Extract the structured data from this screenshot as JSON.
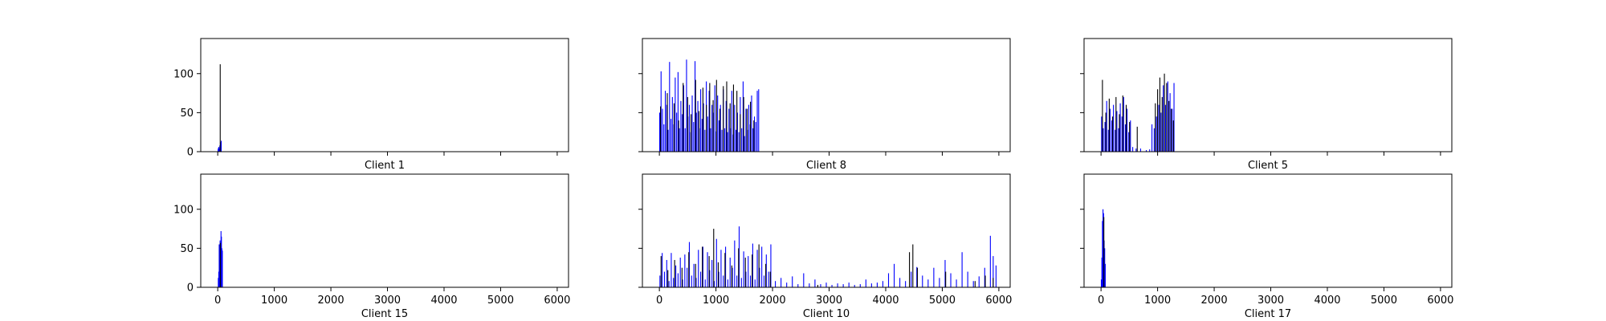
{
  "chart_data": [
    {
      "type": "bar",
      "title": "Client 1",
      "xlim": [
        -300,
        6200
      ],
      "ylim": [
        0,
        145
      ],
      "xticks": [
        0,
        1000,
        2000,
        3000,
        4000,
        5000,
        6000
      ],
      "yticks": [
        0,
        50,
        100
      ],
      "show_xtick_labels": false,
      "show_ytick_labels": true,
      "series": [
        {
          "color": "#0000ff",
          "x": [
            6,
            12,
            20,
            30,
            38,
            50,
            62
          ],
          "values": [
            3,
            5,
            6,
            4,
            8,
            12,
            14
          ]
        },
        {
          "color": "#000000",
          "x": [
            44
          ],
          "values": [
            112
          ]
        }
      ]
    },
    {
      "type": "bar",
      "title": "Client 8",
      "xlim": [
        -300,
        6200
      ],
      "ylim": [
        0,
        145
      ],
      "xticks": [
        0,
        1000,
        2000,
        3000,
        4000,
        5000,
        6000
      ],
      "yticks": [
        0,
        50,
        100
      ],
      "show_xtick_labels": false,
      "show_ytick_labels": false,
      "series": [
        {
          "color": "#0000ff",
          "x": [
            5,
            30,
            55,
            80,
            105,
            130,
            155,
            180,
            205,
            230,
            255,
            280,
            305,
            330,
            355,
            380,
            405,
            430,
            455,
            480,
            505,
            530,
            555,
            580,
            605,
            630,
            655,
            680,
            705,
            730,
            755,
            780,
            805,
            830,
            855,
            880,
            905,
            930,
            955,
            980,
            1005,
            1030,
            1055,
            1080,
            1105,
            1130,
            1155,
            1180,
            1205,
            1230,
            1255,
            1280,
            1305,
            1330,
            1355,
            1380,
            1405,
            1430,
            1455,
            1480,
            1505,
            1530,
            1555,
            1580,
            1605,
            1630,
            1655,
            1680,
            1705,
            1730,
            1755
          ],
          "values": [
            50,
            103,
            55,
            35,
            78,
            60,
            28,
            115,
            42,
            70,
            35,
            95,
            50,
            102,
            30,
            65,
            48,
            85,
            30,
            118,
            45,
            60,
            25,
            72,
            38,
            116,
            50,
            65,
            30,
            80,
            42,
            62,
            28,
            90,
            45,
            78,
            30,
            60,
            50,
            85,
            26,
            72,
            40,
            60,
            28,
            80,
            30,
            65,
            25,
            55,
            30,
            78,
            22,
            60,
            28,
            50,
            25,
            70,
            30,
            90,
            20,
            55,
            28,
            60,
            35,
            72,
            30,
            45,
            38,
            78,
            80
          ]
        },
        {
          "color": "#000000",
          "x": [
            20,
            140,
            260,
            340,
            420,
            500,
            560,
            640,
            700,
            770,
            830,
            890,
            950,
            1010,
            1070,
            1130,
            1190,
            1250,
            1310,
            1370,
            1430,
            1490,
            1550,
            1610,
            1670
          ],
          "values": [
            58,
            75,
            62,
            40,
            88,
            70,
            48,
            92,
            52,
            82,
            60,
            88,
            66,
            92,
            55,
            84,
            90,
            62,
            86,
            78,
            48,
            70,
            55,
            64,
            40
          ]
        }
      ]
    },
    {
      "type": "bar",
      "title": "Client 5",
      "xlim": [
        -300,
        6200
      ],
      "ylim": [
        0,
        145
      ],
      "xticks": [
        0,
        1000,
        2000,
        3000,
        4000,
        5000,
        6000
      ],
      "yticks": [
        0,
        50,
        100
      ],
      "show_xtick_labels": false,
      "show_ytick_labels": false,
      "series": [
        {
          "color": "#0000ff",
          "x": [
            10,
            40,
            70,
            100,
            130,
            160,
            190,
            220,
            250,
            280,
            310,
            340,
            370,
            400,
            430,
            460,
            490,
            520,
            560,
            620,
            700,
            800,
            860,
            900,
            940,
            980,
            1020,
            1060,
            1100,
            1140,
            1180,
            1220,
            1260,
            1290
          ],
          "values": [
            45,
            30,
            38,
            65,
            28,
            55,
            40,
            60,
            28,
            52,
            30,
            62,
            45,
            70,
            35,
            55,
            25,
            40,
            6,
            4,
            4,
            2,
            3,
            35,
            30,
            45,
            60,
            50,
            85,
            60,
            90,
            75,
            55,
            88
          ]
        },
        {
          "color": "#000000",
          "x": [
            25,
            85,
            145,
            205,
            265,
            325,
            385,
            445,
            505,
            640,
            960,
            1000,
            1040,
            1080,
            1120,
            1160,
            1200,
            1240,
            1280
          ],
          "values": [
            92,
            50,
            68,
            45,
            70,
            48,
            72,
            60,
            38,
            32,
            62,
            80,
            95,
            70,
            100,
            88,
            65,
            55,
            40
          ]
        }
      ]
    },
    {
      "type": "bar",
      "title": "Client 15",
      "xlim": [
        -300,
        6200
      ],
      "ylim": [
        0,
        145
      ],
      "xticks": [
        0,
        1000,
        2000,
        3000,
        4000,
        5000,
        6000
      ],
      "yticks": [
        0,
        50,
        100
      ],
      "show_xtick_labels": true,
      "show_ytick_labels": true,
      "series": [
        {
          "color": "#0000ff",
          "x": [
            10,
            18,
            26,
            34,
            42,
            50,
            58,
            66,
            74,
            82
          ],
          "values": [
            12,
            20,
            55,
            35,
            60,
            48,
            72,
            65,
            50,
            47
          ]
        },
        {
          "color": "#000000",
          "x": [
            46
          ],
          "values": [
            57
          ]
        }
      ]
    },
    {
      "type": "bar",
      "title": "Client 10",
      "xlim": [
        -300,
        6200
      ],
      "ylim": [
        0,
        145
      ],
      "xticks": [
        0,
        1000,
        2000,
        3000,
        4000,
        5000,
        6000
      ],
      "yticks": [
        0,
        50,
        100
      ],
      "show_xtick_labels": true,
      "show_ytick_labels": false,
      "series": [
        {
          "color": "#0000ff",
          "x": [
            10,
            50,
            90,
            130,
            170,
            210,
            250,
            290,
            330,
            370,
            410,
            450,
            490,
            530,
            570,
            610,
            650,
            690,
            730,
            770,
            810,
            850,
            890,
            930,
            970,
            1010,
            1050,
            1090,
            1130,
            1170,
            1210,
            1250,
            1290,
            1330,
            1370,
            1410,
            1450,
            1490,
            1530,
            1570,
            1610,
            1650,
            1690,
            1730,
            1770,
            1810,
            1850,
            1890,
            1930,
            1970,
            2050,
            2150,
            2250,
            2350,
            2450,
            2550,
            2650,
            2750,
            2850,
            2950,
            3050,
            3150,
            3250,
            3350,
            3450,
            3550,
            3650,
            3750,
            3850,
            3950,
            4050,
            4150,
            4250,
            4350,
            4450,
            4550,
            4650,
            4750,
            4850,
            4950,
            5050,
            5150,
            5250,
            5350,
            5450,
            5550,
            5650,
            5750,
            5850,
            5900,
            5950
          ],
          "values": [
            15,
            44,
            20,
            35,
            8,
            44,
            12,
            28,
            18,
            38,
            10,
            42,
            25,
            58,
            15,
            30,
            12,
            48,
            20,
            52,
            10,
            45,
            22,
            35,
            8,
            62,
            20,
            48,
            15,
            52,
            10,
            38,
            25,
            60,
            15,
            78,
            12,
            46,
            20,
            40,
            15,
            56,
            10,
            48,
            25,
            52,
            15,
            42,
            20,
            55,
            8,
            12,
            6,
            14,
            4,
            18,
            5,
            10,
            4,
            6,
            3,
            5,
            4,
            6,
            3,
            4,
            10,
            5,
            6,
            8,
            18,
            30,
            12,
            8,
            20,
            26,
            15,
            10,
            25,
            12,
            35,
            18,
            10,
            45,
            20,
            8,
            14,
            25,
            66,
            40,
            28
          ]
        },
        {
          "color": "#000000",
          "x": [
            30,
            150,
            270,
            400,
            520,
            640,
            760,
            880,
            960,
            1040,
            1160,
            1280,
            1400,
            1520,
            1640,
            1760,
            1880,
            1960,
            2800,
            4420,
            4480,
            4560,
            5060,
            5580,
            5760,
            5900
          ],
          "values": [
            40,
            22,
            35,
            25,
            45,
            30,
            52,
            40,
            75,
            32,
            44,
            28,
            50,
            38,
            42,
            55,
            30,
            20,
            3,
            45,
            55,
            25,
            20,
            8,
            15,
            12
          ]
        }
      ]
    },
    {
      "type": "bar",
      "title": "Client 17",
      "xlim": [
        -300,
        6200
      ],
      "ylim": [
        0,
        145
      ],
      "xticks": [
        0,
        1000,
        2000,
        3000,
        4000,
        5000,
        6000
      ],
      "yticks": [
        0,
        50,
        100
      ],
      "show_xtick_labels": true,
      "show_ytick_labels": false,
      "series": [
        {
          "color": "#0000ff",
          "x": [
            5,
            15,
            25,
            35,
            45,
            55,
            65,
            75
          ],
          "values": [
            10,
            38,
            85,
            100,
            95,
            60,
            50,
            30
          ]
        },
        {
          "color": "#000000",
          "x": [
            50
          ],
          "values": [
            90
          ]
        }
      ]
    }
  ]
}
